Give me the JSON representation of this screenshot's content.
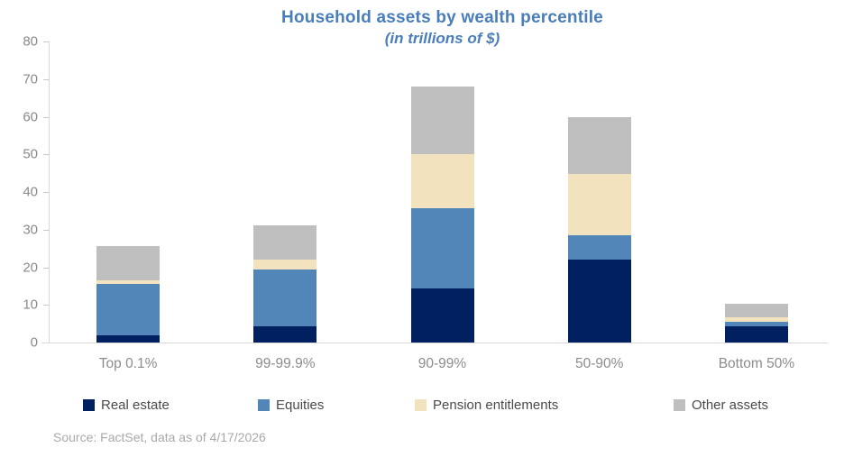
{
  "title": "Household assets by wealth percentile",
  "subtitle": "(in trillions of $)",
  "source": "Source: FactSet, data as of 4/17/2026",
  "colors": {
    "title_text": "#4a7ebb",
    "axis_label_text": "#8a8a8a",
    "legend_text": "#4a4a4a",
    "source_text": "#a9a9a9",
    "axis_line": "#d9d9d9"
  },
  "chart_data": {
    "type": "bar",
    "stacked": true,
    "title": "Household assets by wealth percentile",
    "subtitle": "(in trillions of $)",
    "xlabel": "",
    "ylabel": "",
    "categories": [
      "Top 0.1%",
      "99-99.9%",
      "90-99%",
      "50-90%",
      "Bottom 50%"
    ],
    "series": [
      {
        "name": "Real estate",
        "color": "#002060",
        "values": [
          2.0,
          4.4,
          14.5,
          22.0,
          4.4
        ]
      },
      {
        "name": "Equities",
        "color": "#5285b8",
        "values": [
          13.7,
          15.0,
          21.3,
          6.5,
          1.0
        ]
      },
      {
        "name": "Pension entitlements",
        "color": "#f2e2bd",
        "values": [
          0.8,
          2.6,
          14.2,
          16.3,
          1.4
        ]
      },
      {
        "name": "Other assets",
        "color": "#bfbfbf",
        "values": [
          9.2,
          9.2,
          18.0,
          15.2,
          3.6
        ]
      }
    ],
    "totals": [
      25.7,
      31.2,
      68.0,
      60.0,
      10.4
    ],
    "ylim": [
      0,
      80
    ],
    "yticks": [
      0,
      10,
      20,
      30,
      40,
      50,
      60,
      70,
      80
    ],
    "grid": false,
    "legend_position": "bottom"
  }
}
